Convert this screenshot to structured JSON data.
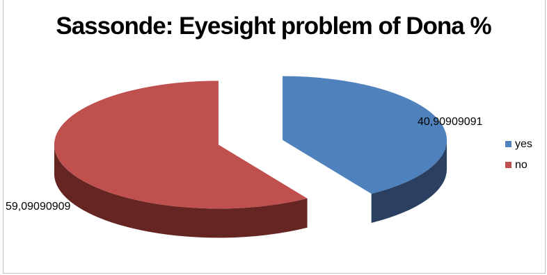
{
  "chart_data": {
    "type": "pie",
    "title": "Sassonde: Eyesight problem of Dona %",
    "categories": [
      "yes",
      "no"
    ],
    "values": [
      40.90909091,
      59.09090909
    ],
    "data_labels": [
      "40,90909091",
      "59,09090909"
    ],
    "colors": [
      "#4f81bd",
      "#c0504d"
    ],
    "side_colors": [
      "#2b4060",
      "#652523"
    ],
    "legend": {
      "placement": "right",
      "entries": [
        "yes",
        "no"
      ]
    },
    "exploded": true,
    "three_d": true
  }
}
